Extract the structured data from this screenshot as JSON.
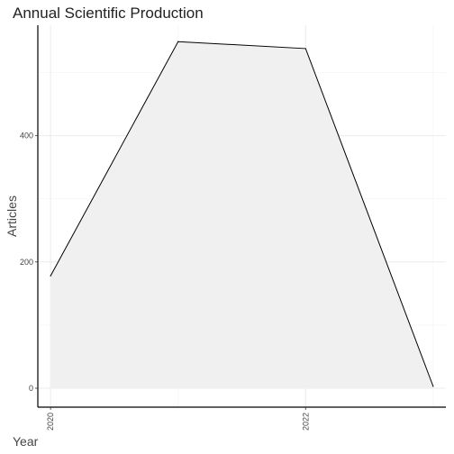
{
  "chart_data": {
    "type": "area",
    "title": "Annual Scientific Production",
    "xlabel": "Year",
    "ylabel": "Articles",
    "x": [
      2020,
      2021,
      2022,
      2023
    ],
    "y": [
      178,
      549,
      538,
      3
    ],
    "xlim": [
      2019.9,
      2023.1
    ],
    "ylim": [
      -30,
      575
    ],
    "x_ticks": [
      2020,
      2022
    ],
    "y_ticks": [
      0,
      200,
      400
    ],
    "x_tick_labels": [
      "2020",
      "2022"
    ],
    "y_tick_labels": [
      "0",
      "200",
      "400"
    ],
    "fill_color": "#f0f0f0",
    "line_color": "#000000",
    "grid": true
  }
}
